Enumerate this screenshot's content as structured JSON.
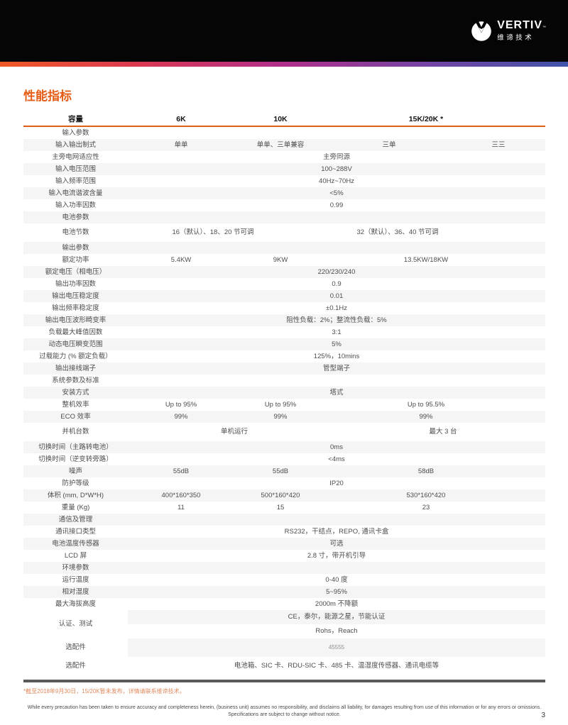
{
  "brand": {
    "name": "VERTIV",
    "trademark": "™",
    "subtitle": "维谛技术"
  },
  "page": {
    "title": "性能指标",
    "page_number": "3",
    "footnote": "*截至2018年9月30日，15/20K暂未发布，详情请联系维谛技术。",
    "disclaimer_line1": "While every precaution has been taken to ensure accuracy and completeness herein, (business unit) assumes no responsibility, and disclaims all liability, for damages resulting from use of this information or for any errors or omissions.",
    "disclaimer_line2": "Specifications are subject to change without notice."
  },
  "colors": {
    "accent_orange": "#e55d15",
    "footnote_orange": "#e08a5e",
    "row_shade": "#f5f5f5",
    "footer_rule": "#595a5c",
    "header_black": "#050505",
    "gradient": [
      "#ee5a26",
      "#d93853",
      "#b02e8c",
      "#7544a4",
      "#4053a8"
    ]
  },
  "table": {
    "columns": [
      "容量",
      "6K",
      "10K",
      "15K/20K *"
    ],
    "rows": [
      {
        "kind": "section",
        "label": "输入参数"
      },
      {
        "kind": "cols4",
        "label": "输入输出制式",
        "shade": true,
        "values": [
          "单单",
          "单单、三单兼容",
          "三单",
          "三三"
        ]
      },
      {
        "kind": "span",
        "label": "主旁电网适应性",
        "value": "主旁同源"
      },
      {
        "kind": "span",
        "label": "输入电压范围",
        "shade": true,
        "value": "100~288V"
      },
      {
        "kind": "span",
        "label": "输入频率范围",
        "value": "40Hz~70Hz"
      },
      {
        "kind": "span",
        "label": "输入电流谐波含量",
        "shade": true,
        "value": "<5%"
      },
      {
        "kind": "span",
        "label": "输入功率因数",
        "value": "0.99"
      },
      {
        "kind": "section",
        "label": "电池参数",
        "shade": true
      },
      {
        "kind": "split2a",
        "label": "电池节数",
        "tall": true,
        "values": [
          "16（默认）、18、20 节可调",
          "32（默认）、36、40 节可调"
        ]
      },
      {
        "kind": "section",
        "label": "输出参数",
        "shade": true
      },
      {
        "kind": "cols3",
        "label": "额定功率",
        "values": [
          "5.4KW",
          "9KW",
          "13.5KW/18KW"
        ]
      },
      {
        "kind": "span",
        "label": "额定电压（相电压）",
        "shade": true,
        "value": "220/230/240"
      },
      {
        "kind": "span",
        "label": "输出功率因数",
        "value": "0.9"
      },
      {
        "kind": "span",
        "label": "输出电压稳定度",
        "shade": true,
        "value": "0.01"
      },
      {
        "kind": "span",
        "label": "输出频率稳定度",
        "value": "±0.1Hz"
      },
      {
        "kind": "span",
        "label": "输出电压波形畸变率",
        "shade": true,
        "value": "阻性负载：2%；整流性负载：5%"
      },
      {
        "kind": "span",
        "label": "负载最大峰值因数",
        "value": "3:1"
      },
      {
        "kind": "span",
        "label": "动态电压瞬变范围",
        "shade": true,
        "value": "5%"
      },
      {
        "kind": "span",
        "label": "过载能力 (% 额定负载）",
        "value": "125%，10mins"
      },
      {
        "kind": "span",
        "label": "输出接线端子",
        "shade": true,
        "value": "管型端子"
      },
      {
        "kind": "section",
        "label": "系统参数及标准"
      },
      {
        "kind": "span",
        "label": "安装方式",
        "shade": true,
        "value": "塔式"
      },
      {
        "kind": "cols3",
        "label": "整机效率",
        "values": [
          "Up to 95%",
          "Up to 95%",
          "Up to 95.5%"
        ]
      },
      {
        "kind": "cols3",
        "label": "ECO 效率",
        "shade": true,
        "values": [
          "99%",
          "99%",
          "99%"
        ]
      },
      {
        "kind": "split2b",
        "label": "并机台数",
        "tall": true,
        "values": [
          "单机运行",
          "最大 3 台"
        ]
      },
      {
        "kind": "span",
        "label": "切换时间（主路转电池）",
        "shade": true,
        "value": "0ms"
      },
      {
        "kind": "span",
        "label": "切换时间（逆变转旁路）",
        "value": "<4ms"
      },
      {
        "kind": "cols3",
        "label": "噪声",
        "shade": true,
        "values": [
          "55dB",
          "55dB",
          "58dB"
        ]
      },
      {
        "kind": "span",
        "label": "防护等级",
        "value": "IP20"
      },
      {
        "kind": "cols3",
        "label": "体积 (mm, D*W*H)",
        "shade": true,
        "values": [
          "400*160*350",
          "500*160*420",
          "530*160*420"
        ]
      },
      {
        "kind": "cols3",
        "label": "重量 (Kg)",
        "values": [
          "11",
          "15",
          "23"
        ]
      },
      {
        "kind": "section",
        "label": "通信及管理",
        "shade": true
      },
      {
        "kind": "span",
        "label": "通讯接口类型",
        "value": "RS232，干结点，REPO, 通讯卡盒"
      },
      {
        "kind": "span",
        "label": "电池温度传感器",
        "shade": true,
        "value": "可选"
      },
      {
        "kind": "span",
        "label": "LCD 屏",
        "value": "2.8 寸，带开机引导"
      },
      {
        "kind": "section",
        "label": "环境参数",
        "shade": true
      },
      {
        "kind": "span",
        "label": "运行温度",
        "value": "0-40 度"
      },
      {
        "kind": "span",
        "label": "相对湿度",
        "shade": true,
        "value": "5~95%"
      },
      {
        "kind": "span",
        "label": "最大海拔高度",
        "value": "2000m 不降额"
      },
      {
        "kind": "cert",
        "label": "认证、测试",
        "lines": [
          {
            "text": "CE，泰尔，能源之星，节能认证",
            "shadeValue": true
          },
          {
            "text": "Rohs，Reach"
          }
        ]
      },
      {
        "kind": "span",
        "label": "选配件",
        "value": "45555",
        "valueShade": true,
        "small": true,
        "tall": true
      },
      {
        "kind": "span",
        "label": "选配件",
        "value": "电池箱、SIC 卡、RDU-SIC 卡、485 卡、温湿度传感器、通讯电缆等",
        "tall": true
      }
    ]
  }
}
